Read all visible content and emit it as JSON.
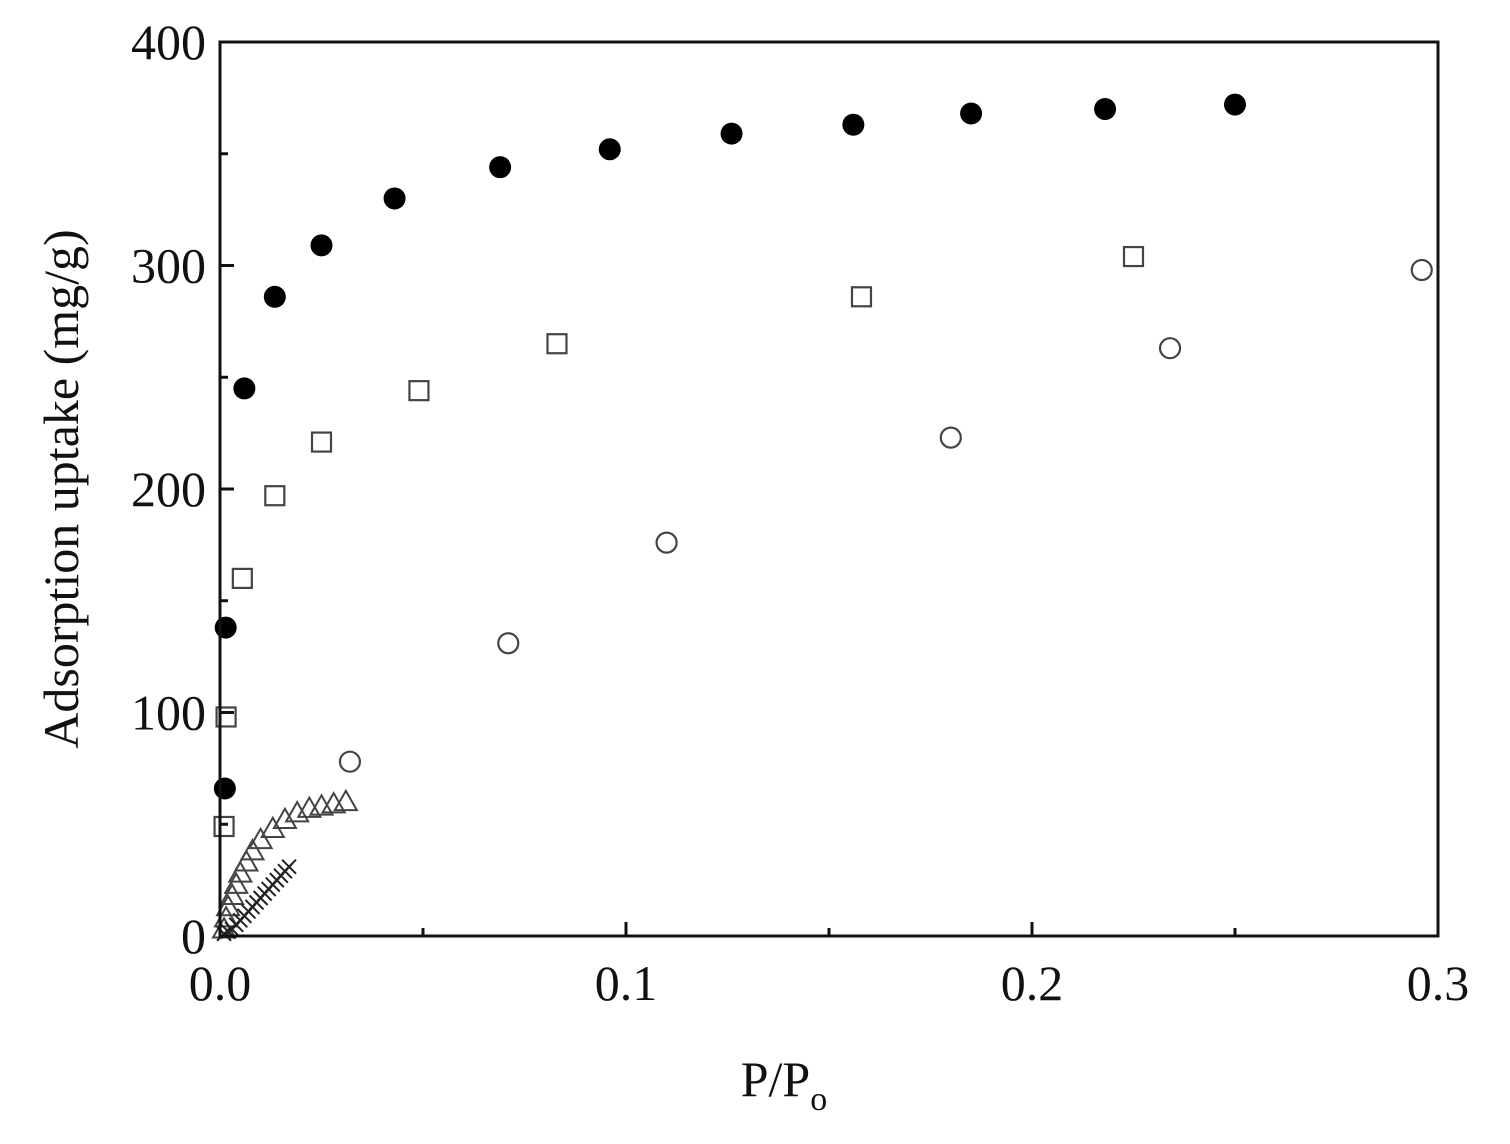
{
  "chart_data": {
    "type": "scatter",
    "title": "",
    "xlabel": {
      "main": "P/P",
      "sub": "o"
    },
    "ylabel": "Adsorption uptake (mg/g)",
    "xlim": [
      0,
      0.3
    ],
    "ylim": [
      0,
      400
    ],
    "x_ticks": [
      0.0,
      0.1,
      0.2,
      0.3
    ],
    "x_tick_labels": [
      "0.0",
      "0.1",
      "0.2",
      "0.3"
    ],
    "y_ticks": [
      0,
      100,
      200,
      300,
      400
    ],
    "y_tick_labels": [
      "0",
      "100",
      "200",
      "300",
      "400"
    ],
    "grid": false,
    "legend": "none",
    "series": [
      {
        "marker": "filled-circle",
        "color": "#000000",
        "points": [
          [
            0.0012,
            66
          ],
          [
            0.0014,
            138
          ],
          [
            0.006,
            245
          ],
          [
            0.0135,
            286
          ],
          [
            0.025,
            309
          ],
          [
            0.043,
            330
          ],
          [
            0.069,
            344
          ],
          [
            0.096,
            352
          ],
          [
            0.126,
            359
          ],
          [
            0.156,
            363
          ],
          [
            0.185,
            368
          ],
          [
            0.218,
            370
          ],
          [
            0.25,
            372
          ]
        ]
      },
      {
        "marker": "open-square",
        "color": "#444444",
        "points": [
          [
            0.001,
            49
          ],
          [
            0.0015,
            98
          ],
          [
            0.0055,
            160
          ],
          [
            0.0135,
            197
          ],
          [
            0.025,
            221
          ],
          [
            0.049,
            244
          ],
          [
            0.083,
            265
          ],
          [
            0.158,
            286
          ],
          [
            0.225,
            304
          ]
        ]
      },
      {
        "marker": "open-circle",
        "color": "#444444",
        "points": [
          [
            0.032,
            78
          ],
          [
            0.071,
            131
          ],
          [
            0.11,
            176
          ],
          [
            0.18,
            223
          ],
          [
            0.234,
            263
          ],
          [
            0.296,
            298
          ]
        ]
      },
      {
        "marker": "open-triangle",
        "color": "#444444",
        "points": [
          [
            0.001,
            3
          ],
          [
            0.0015,
            8
          ],
          [
            0.002,
            13
          ],
          [
            0.003,
            18
          ],
          [
            0.004,
            23
          ],
          [
            0.005,
            28
          ],
          [
            0.0065,
            33
          ],
          [
            0.008,
            38
          ],
          [
            0.01,
            43
          ],
          [
            0.013,
            48
          ],
          [
            0.016,
            52
          ],
          [
            0.019,
            55
          ],
          [
            0.022,
            57
          ],
          [
            0.025,
            58
          ],
          [
            0.028,
            59
          ],
          [
            0.031,
            60
          ]
        ]
      },
      {
        "marker": "cross",
        "color": "#222222",
        "points": [
          [
            0.001,
            1
          ],
          [
            0.002,
            2
          ],
          [
            0.003,
            3
          ],
          [
            0.004,
            5
          ],
          [
            0.005,
            7
          ],
          [
            0.006,
            9
          ],
          [
            0.007,
            11
          ],
          [
            0.008,
            13
          ],
          [
            0.009,
            15
          ],
          [
            0.01,
            17
          ],
          [
            0.011,
            19
          ],
          [
            0.012,
            21
          ],
          [
            0.013,
            23
          ],
          [
            0.014,
            25
          ],
          [
            0.015,
            27
          ],
          [
            0.016,
            29
          ],
          [
            0.017,
            31
          ]
        ]
      }
    ]
  }
}
